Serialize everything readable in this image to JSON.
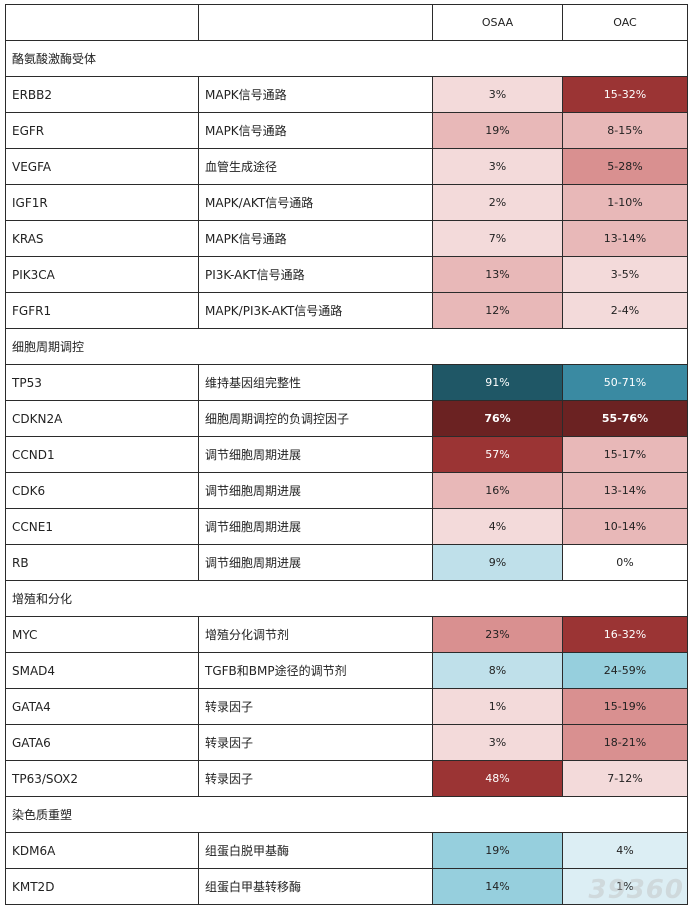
{
  "header": {
    "col_osaa": "OSAA",
    "col_oac": "OAC"
  },
  "colors": {
    "c1": "#f3dada",
    "c2": "#e8b8b8",
    "c3": "#d99090",
    "c4": "#9b3434",
    "c5": "#6b2222",
    "b1": "#dceef4",
    "b2": "#bfe0ea",
    "b3": "#96cfdd",
    "b4": "#3a8aa2",
    "b5": "#1f5766"
  },
  "sections": [
    {
      "title": "酪氨酸激酶受体",
      "rows": [
        {
          "gene": "ERBB2",
          "func": "MAPK信号通路",
          "osaa": "3%",
          "oac": "15-32%"
        },
        {
          "gene": "EGFR",
          "func": "MAPK信号通路",
          "osaa": "19%",
          "oac": "8-15%"
        },
        {
          "gene": "VEGFA",
          "func": "血管生成途径",
          "osaa": "3%",
          "oac": "5-28%"
        },
        {
          "gene": "IGF1R",
          "func": "MAPK/AKT信号通路",
          "osaa": "2%",
          "oac": "1-10%"
        },
        {
          "gene": "KRAS",
          "func": "MAPK信号通路",
          "osaa": "7%",
          "oac": "13-14%"
        },
        {
          "gene": "PIK3CA",
          "func": "PI3K-AKT信号通路",
          "osaa": "13%",
          "oac": "3-5%"
        },
        {
          "gene": "FGFR1",
          "func": "MAPK/PI3K-AKT信号通路",
          "osaa": "12%",
          "oac": "2-4%"
        }
      ]
    },
    {
      "title": "细胞周期调控",
      "rows": [
        {
          "gene": "TP53",
          "func": "维持基因组完整性",
          "osaa": "91%",
          "oac": "50-71%"
        },
        {
          "gene": "CDKN2A",
          "func": "细胞周期调控的负调控因子",
          "osaa": "76%",
          "oac": "55-76%"
        },
        {
          "gene": "CCND1",
          "func": "调节细胞周期进展",
          "osaa": "57%",
          "oac": "15-17%"
        },
        {
          "gene": "CDK6",
          "func": "调节细胞周期进展",
          "osaa": "16%",
          "oac": "13-14%"
        },
        {
          "gene": "CCNE1",
          "func": "调节细胞周期进展",
          "osaa": "4%",
          "oac": "10-14%"
        },
        {
          "gene": "RB",
          "func": "调节细胞周期进展",
          "osaa": "9%",
          "oac": "0%"
        }
      ]
    },
    {
      "title": "增殖和分化",
      "rows": [
        {
          "gene": "MYC",
          "func": "增殖分化调节剂",
          "osaa": "23%",
          "oac": "16-32%"
        },
        {
          "gene": "SMAD4",
          "func": "TGFB和BMP途径的调节剂",
          "osaa": "8%",
          "oac": "24-59%"
        },
        {
          "gene": "GATA4",
          "func": "转录因子",
          "osaa": "1%",
          "oac": "15-19%"
        },
        {
          "gene": "GATA6",
          "func": "转录因子",
          "osaa": "3%",
          "oac": "18-21%"
        },
        {
          "gene": "TP63/SOX2",
          "func": "转录因子",
          "osaa": "48%",
          "oac": "7-12%"
        }
      ]
    },
    {
      "title": "染色质重塑",
      "rows": [
        {
          "gene": "KDM6A",
          "func": "组蛋白脱甲基酶",
          "osaa": "19%",
          "oac": "4%"
        },
        {
          "gene": "KMT2D",
          "func": "组蛋白甲基转移酶",
          "osaa": "14%",
          "oac": "1%"
        }
      ]
    }
  ],
  "watermark": "39360"
}
